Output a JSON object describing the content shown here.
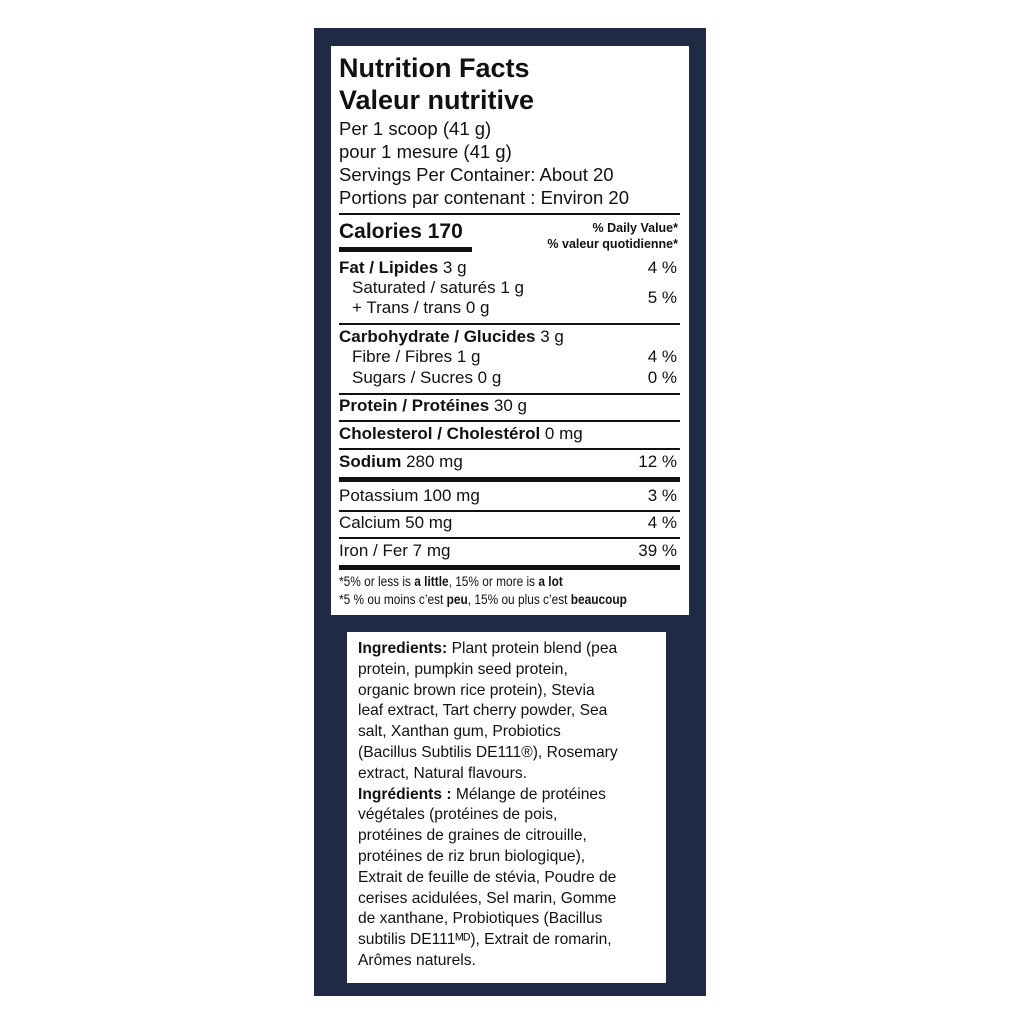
{
  "colors": {
    "panel": "#1f2a44",
    "label_bg": "#ffffff",
    "text": "#111111"
  },
  "nutrition": {
    "title_en": "Nutrition Facts",
    "title_fr": "Valeur nutritive",
    "serving_en": "Per 1 scoop (41 g)",
    "serving_fr": "pour 1 mesure (41 g)",
    "servings_en": "Servings Per Container: About 20",
    "servings_fr": "Portions par contenant : Environ 20",
    "calories_label": "Calories 170",
    "dv_en": "% Daily Value*",
    "dv_fr": "% valeur quotidienne*",
    "rows": [
      {
        "bold": "Fat / Lipides",
        "amount": " 3 g",
        "pct": "4 %"
      },
      {
        "bold": "",
        "amount": "Saturated / saturés 1 g",
        "pct": "5 %"
      },
      {
        "bold": "",
        "amount": "+ Trans / trans 0 g",
        "pct": ""
      },
      {
        "bold": "Carbohydrate / Glucides",
        "amount": " 3 g",
        "pct": ""
      },
      {
        "bold": "",
        "amount": "Fibre / Fibres 1 g",
        "pct": "4 %"
      },
      {
        "bold": "",
        "amount": "Sugars / Sucres 0 g",
        "pct": "0 %"
      },
      {
        "bold": "Protein / Protéines",
        "amount": " 30 g",
        "pct": ""
      },
      {
        "bold": "Cholesterol / Cholestérol",
        "amount": " 0 mg",
        "pct": ""
      },
      {
        "bold": "Sodium",
        "amount": " 280 mg",
        "pct": "12 %"
      },
      {
        "bold": "",
        "amount": "Potassium 100 mg",
        "pct": "3 %"
      },
      {
        "bold": "",
        "amount": "Calcium 50 mg",
        "pct": "4 %"
      },
      {
        "bold": "",
        "amount": "Iron / Fer 7 mg",
        "pct": "39 %"
      }
    ],
    "footnote_en": {
      "a": "*5% or less is ",
      "b": "a little",
      "c": ", 15% or more is ",
      "d": "a lot"
    },
    "footnote_fr": {
      "a": "*5 % ou moins c’est ",
      "b": "peu",
      "c": ", 15% ou plus c’est ",
      "d": "beaucoup"
    }
  },
  "ingredients": {
    "lines": [
      {
        "bold": "Ingredients:",
        "text": " Plant protein blend (pea"
      },
      {
        "bold": "",
        "text": "protein, pumpkin seed protein,"
      },
      {
        "bold": "",
        "text": "organic brown rice protein), Stevia"
      },
      {
        "bold": "",
        "text": "leaf extract, Tart cherry powder, Sea"
      },
      {
        "bold": "",
        "text": "salt, Xanthan gum, Probiotics"
      },
      {
        "bold": "",
        "text": "(Bacillus Subtilis DE111®), Rosemary"
      },
      {
        "bold": "",
        "text": "extract, Natural flavours."
      },
      {
        "bold": "Ingrédients :",
        "text": " Mélange de protéines"
      },
      {
        "bold": "",
        "text": "végétales (protéines de pois,"
      },
      {
        "bold": "",
        "text": "protéines de graines de citrouille,"
      },
      {
        "bold": "",
        "text": "protéines de riz brun biologique),"
      },
      {
        "bold": "",
        "text": "Extrait de feuille de stévia, Poudre de"
      },
      {
        "bold": "",
        "text": "cerises acidulées, Sel marin, Gomme"
      },
      {
        "bold": "",
        "text": "de xanthane, Probiotiques (Bacillus"
      },
      {
        "bold": "",
        "text": "subtilis DE111ᴹᴰ), Extrait de romarin,"
      },
      {
        "bold": "",
        "text": "Arômes naturels."
      }
    ]
  }
}
